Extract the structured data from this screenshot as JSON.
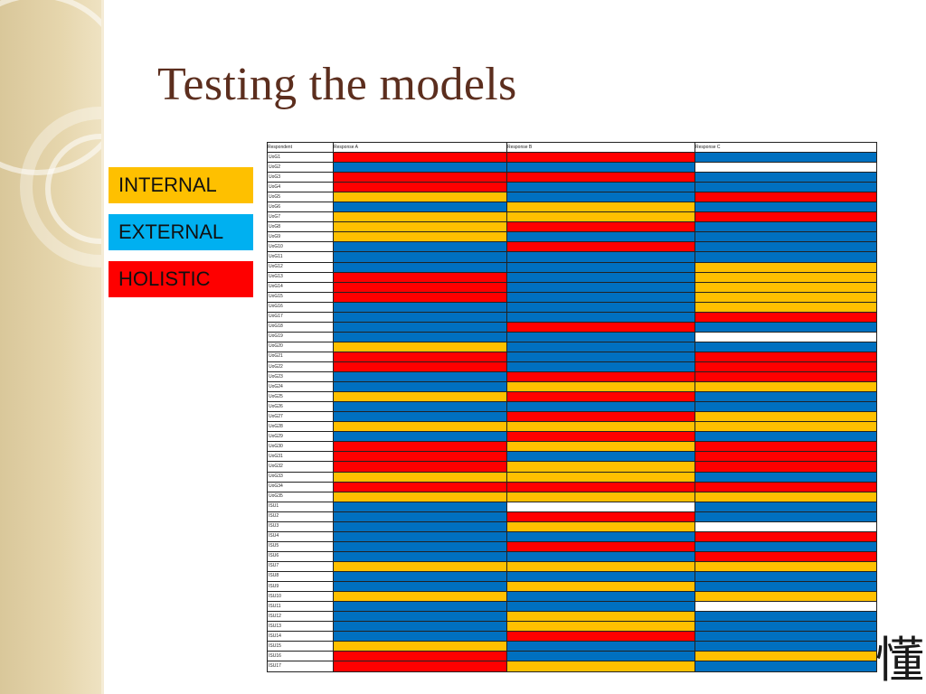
{
  "slide": {
    "title": "Testing the models",
    "hanzi": "懂"
  },
  "legend": [
    {
      "label": "INTERNAL",
      "color": "#fec000"
    },
    {
      "label": "EXTERNAL",
      "color": "#00b0f0"
    },
    {
      "label": "HOLISTIC",
      "color": "#fe0000"
    }
  ],
  "palette": {
    "I": "#ffc000",
    "E": "#0070c0",
    "H": "#ff0000",
    "W": "#ffffff"
  },
  "table": {
    "headers": [
      "Respondent",
      "Response A",
      "Response B",
      "Response C"
    ],
    "rows": [
      {
        "id": "UoG1",
        "cells": [
          "H",
          "H",
          "E"
        ]
      },
      {
        "id": "UoG2",
        "cells": [
          "E",
          "E",
          "W"
        ]
      },
      {
        "id": "UoG3",
        "cells": [
          "H",
          "H",
          "E"
        ]
      },
      {
        "id": "UoG4",
        "cells": [
          "H",
          "E",
          "E"
        ]
      },
      {
        "id": "UoG5",
        "cells": [
          "I",
          "E",
          "H"
        ]
      },
      {
        "id": "UoG6",
        "cells": [
          "E",
          "I",
          "E"
        ]
      },
      {
        "id": "UoG7",
        "cells": [
          "I",
          "I",
          "H"
        ]
      },
      {
        "id": "UoG8",
        "cells": [
          "I",
          "H",
          "E"
        ]
      },
      {
        "id": "UoG9",
        "cells": [
          "I",
          "E",
          "E"
        ]
      },
      {
        "id": "UoG10",
        "cells": [
          "E",
          "H",
          "E"
        ]
      },
      {
        "id": "UoG11",
        "cells": [
          "E",
          "E",
          "E"
        ]
      },
      {
        "id": "UoG12",
        "cells": [
          "E",
          "E",
          "I"
        ]
      },
      {
        "id": "UoG13",
        "cells": [
          "H",
          "E",
          "I"
        ]
      },
      {
        "id": "UoG14",
        "cells": [
          "H",
          "E",
          "I"
        ]
      },
      {
        "id": "UoG15",
        "cells": [
          "H",
          "E",
          "I"
        ]
      },
      {
        "id": "UoG16",
        "cells": [
          "E",
          "E",
          "I"
        ]
      },
      {
        "id": "UoG17",
        "cells": [
          "E",
          "E",
          "H"
        ]
      },
      {
        "id": "UoG18",
        "cells": [
          "E",
          "H",
          "E"
        ]
      },
      {
        "id": "UoG19",
        "cells": [
          "E",
          "E",
          "W"
        ]
      },
      {
        "id": "UoG20",
        "cells": [
          "I",
          "E",
          "E"
        ]
      },
      {
        "id": "UoG21",
        "cells": [
          "H",
          "E",
          "H"
        ]
      },
      {
        "id": "UoG22",
        "cells": [
          "H",
          "E",
          "H"
        ]
      },
      {
        "id": "UoG23",
        "cells": [
          "E",
          "H",
          "H"
        ]
      },
      {
        "id": "UoG24",
        "cells": [
          "E",
          "I",
          "I"
        ]
      },
      {
        "id": "UoG25",
        "cells": [
          "I",
          "H",
          "E"
        ]
      },
      {
        "id": "UoG26",
        "cells": [
          "E",
          "E",
          "E"
        ]
      },
      {
        "id": "UoG27",
        "cells": [
          "E",
          "H",
          "I"
        ]
      },
      {
        "id": "UoG28",
        "cells": [
          "I",
          "I",
          "I"
        ]
      },
      {
        "id": "UoG29",
        "cells": [
          "E",
          "H",
          "E"
        ]
      },
      {
        "id": "UoG30",
        "cells": [
          "H",
          "I",
          "H"
        ]
      },
      {
        "id": "UoG31",
        "cells": [
          "H",
          "E",
          "H"
        ]
      },
      {
        "id": "UoG32",
        "cells": [
          "H",
          "I",
          "H"
        ]
      },
      {
        "id": "UoG33",
        "cells": [
          "I",
          "I",
          "E"
        ]
      },
      {
        "id": "UoG34",
        "cells": [
          "H",
          "H",
          "H"
        ]
      },
      {
        "id": "UoG35",
        "cells": [
          "I",
          "I",
          "I"
        ]
      },
      {
        "id": "ISU1",
        "cells": [
          "E",
          "W",
          "E"
        ]
      },
      {
        "id": "ISU2",
        "cells": [
          "E",
          "H",
          "E"
        ]
      },
      {
        "id": "ISU3",
        "cells": [
          "E",
          "I",
          "W"
        ]
      },
      {
        "id": "ISU4",
        "cells": [
          "E",
          "E",
          "H"
        ]
      },
      {
        "id": "ISU5",
        "cells": [
          "E",
          "H",
          "E"
        ]
      },
      {
        "id": "ISU6",
        "cells": [
          "E",
          "E",
          "H"
        ]
      },
      {
        "id": "ISU7",
        "cells": [
          "I",
          "I",
          "I"
        ]
      },
      {
        "id": "ISU8",
        "cells": [
          "E",
          "E",
          "E"
        ]
      },
      {
        "id": "ISU9",
        "cells": [
          "E",
          "I",
          "E"
        ]
      },
      {
        "id": "ISU10",
        "cells": [
          "I",
          "E",
          "I"
        ]
      },
      {
        "id": "ISU11",
        "cells": [
          "E",
          "E",
          "W"
        ]
      },
      {
        "id": "ISU12",
        "cells": [
          "E",
          "I",
          "E"
        ]
      },
      {
        "id": "ISU13",
        "cells": [
          "E",
          "I",
          "E"
        ]
      },
      {
        "id": "ISU14",
        "cells": [
          "E",
          "H",
          "E"
        ]
      },
      {
        "id": "ISU15",
        "cells": [
          "I",
          "E",
          "E"
        ]
      },
      {
        "id": "ISU16",
        "cells": [
          "H",
          "E",
          "I"
        ]
      },
      {
        "id": "ISU17",
        "cells": [
          "H",
          "I",
          "E"
        ]
      }
    ]
  }
}
